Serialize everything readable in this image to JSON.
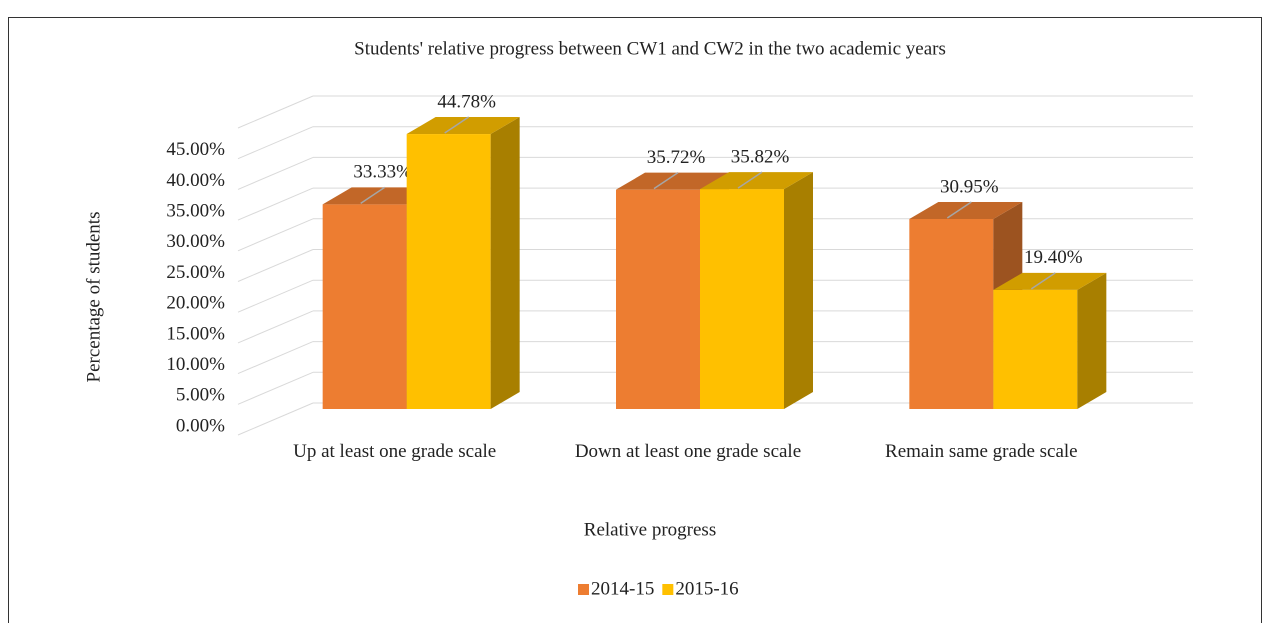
{
  "chart_data": {
    "type": "bar3d",
    "title": "Students' relative progress between CW1 and CW2 in the two academic years",
    "x_label": "Relative progress",
    "y_label": "Percentage of students",
    "categories": [
      "Up at least one grade scale",
      "Down at least one grade scale",
      "Remain same grade scale"
    ],
    "series": [
      {
        "name": "2014-15",
        "color": "#ED7D31",
        "values": [
          33.33,
          35.72,
          30.95
        ],
        "value_labels": [
          "33.33%",
          "35.72%",
          "30.95%"
        ]
      },
      {
        "name": "2015-16",
        "color": "#FFC000",
        "values": [
          44.78,
          35.82,
          19.4
        ],
        "value_labels": [
          "44.78%",
          "35.82%",
          "19.40%"
        ]
      }
    ],
    "ylim": [
      0,
      50
    ],
    "yticks": [
      {
        "value": 0,
        "label": "0.00%"
      },
      {
        "value": 5,
        "label": "5.00%"
      },
      {
        "value": 10,
        "label": "10.00%"
      },
      {
        "value": 15,
        "label": "15.00%"
      },
      {
        "value": 20,
        "label": "20.00%"
      },
      {
        "value": 25,
        "label": "25.00%"
      },
      {
        "value": 30,
        "label": "30.00%"
      },
      {
        "value": 35,
        "label": "35.00%"
      },
      {
        "value": 40,
        "label": "40.00%"
      },
      {
        "value": 45,
        "label": "45.00%"
      }
    ],
    "grid": true,
    "legend": "bottom"
  }
}
